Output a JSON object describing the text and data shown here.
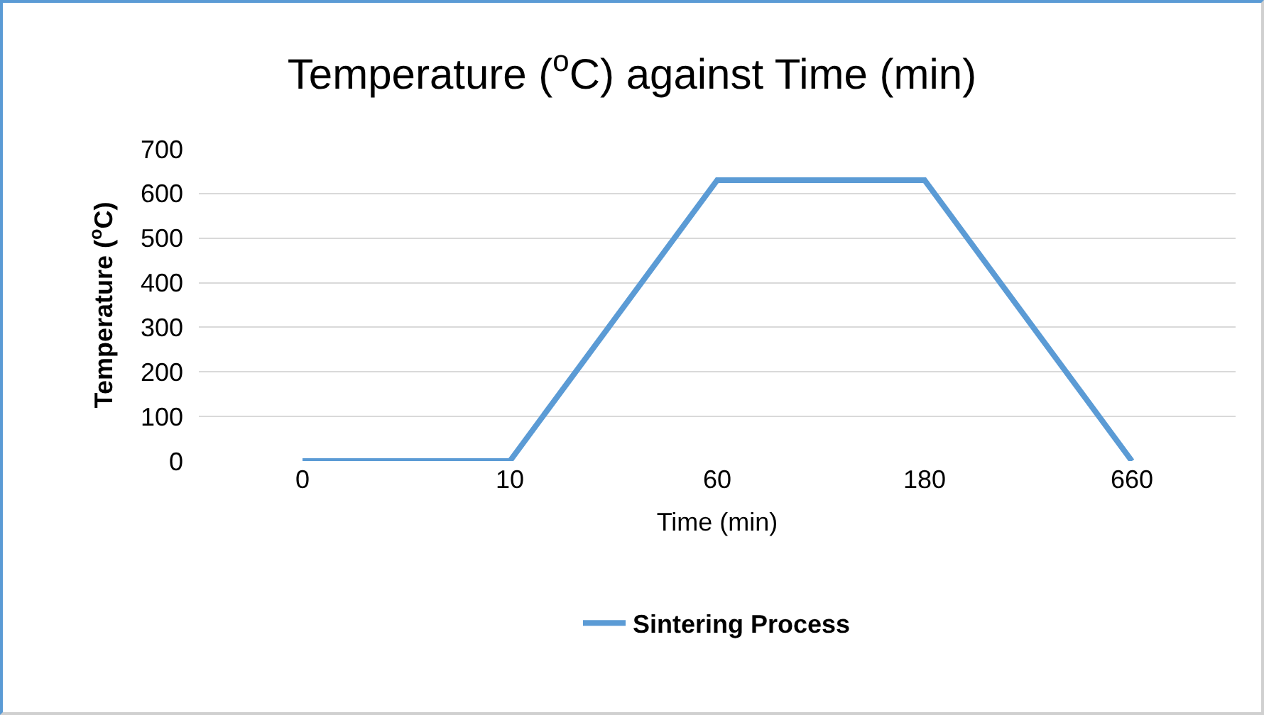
{
  "chart_data": {
    "type": "line",
    "title": "Temperature ($^{o}$C) against Time (min)",
    "xlabel": "Time (min)",
    "ylabel": "Temperature ($^{o}$C)",
    "categories": [
      "0",
      "10",
      "60",
      "180",
      "660"
    ],
    "series": [
      {
        "name": "Sintering Process",
        "color": "#5b9bd5",
        "values": [
          0,
          0,
          630,
          630,
          0
        ]
      }
    ],
    "ylim": [
      0,
      700
    ],
    "yticks": [
      0,
      100,
      200,
      300,
      400,
      500,
      600,
      700
    ],
    "grid": "y",
    "legend": "bottom",
    "marker": "none",
    "line_style": "solid"
  }
}
